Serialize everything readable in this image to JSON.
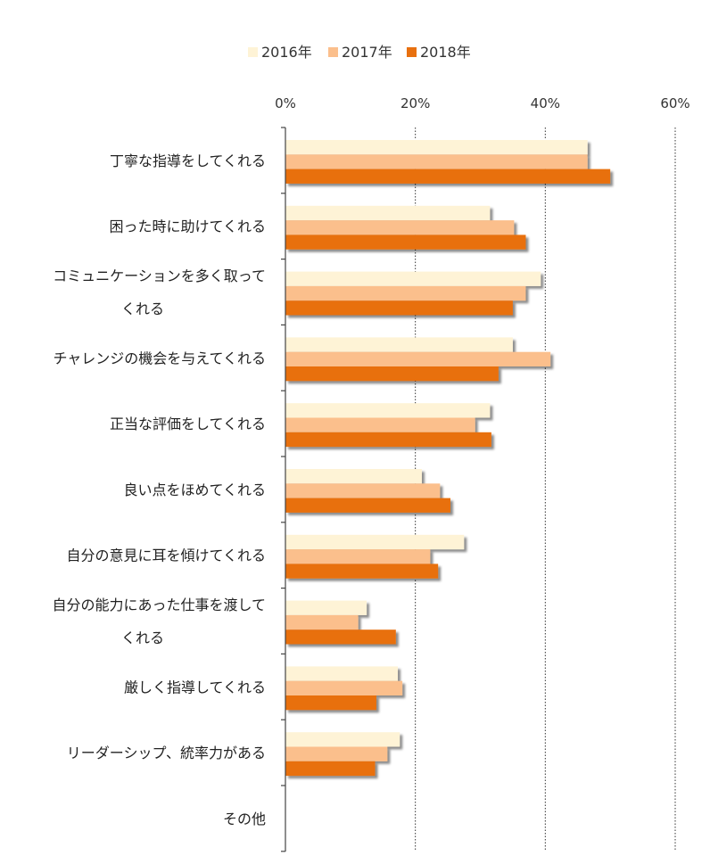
{
  "chart_data": {
    "type": "bar",
    "orientation": "horizontal",
    "categories": [
      [
        "丁寧な指導をしてくれる"
      ],
      [
        "困った時に助けてくれる"
      ],
      [
        "コミュニケーションを多く取って",
        "くれる"
      ],
      [
        "チャレンジの機会を与えてくれる"
      ],
      [
        "正当な評価をしてくれる"
      ],
      [
        "良い点をほめてくれる"
      ],
      [
        "自分の意見に耳を傾けてくれる"
      ],
      [
        "自分の能力にあった仕事を渡して",
        "くれる"
      ],
      [
        "厳しく指導してくれる"
      ],
      [
        "リーダーシップ、統率力がある"
      ],
      [
        "その他"
      ]
    ],
    "series": [
      {
        "name": "2016年",
        "color": "#FEF3D6",
        "values": [
          46.5,
          31.5,
          39.3,
          35.0,
          31.5,
          21.0,
          27.5,
          12.5,
          17.3,
          17.6,
          0
        ]
      },
      {
        "name": "2017年",
        "color": "#FBBF8C",
        "values": [
          46.5,
          35.2,
          37.0,
          40.8,
          29.2,
          23.8,
          22.3,
          11.2,
          18.0,
          15.7,
          0
        ]
      },
      {
        "name": "2018年",
        "color": "#E8700F",
        "values": [
          50.0,
          37.0,
          35.0,
          32.8,
          31.7,
          25.4,
          23.5,
          17.0,
          14.0,
          13.8,
          0
        ]
      }
    ],
    "xaxis": {
      "ticks": [
        "0%",
        "20%",
        "40%",
        "60%"
      ],
      "tick_values": [
        0,
        20,
        40,
        60
      ],
      "range": [
        0,
        60
      ],
      "position": "top"
    },
    "grid": "vertical",
    "legend_position": "top"
  }
}
